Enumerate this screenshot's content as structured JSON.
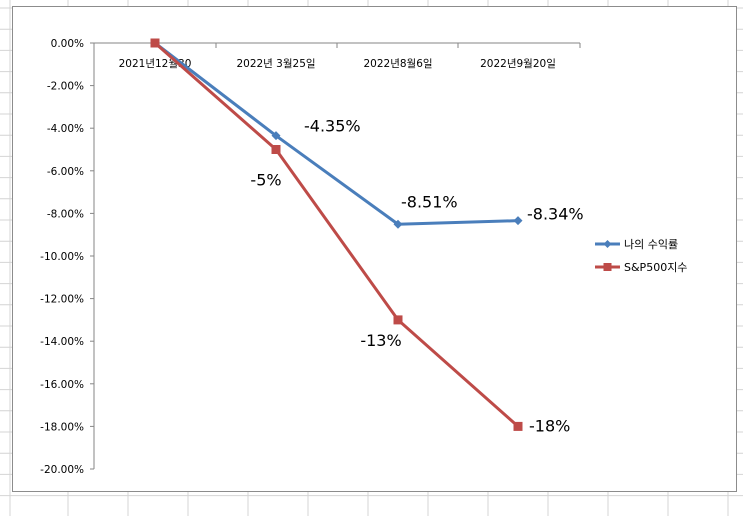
{
  "chart_data": {
    "type": "line",
    "categories": [
      "2021년12월30",
      "2022년 3월25일",
      "2022년8월6일",
      "2022년9월20일"
    ],
    "series": [
      {
        "name": "나의 수익률",
        "color": "#4a7ebb",
        "marker": "diamond",
        "values": [
          0,
          -4.35,
          -8.51,
          -8.34
        ],
        "data_labels": [
          "",
          "-4.35%",
          "-8.51%",
          "-8.34%"
        ]
      },
      {
        "name": "S&P500지수",
        "color": "#be4b48",
        "marker": "square",
        "values": [
          0,
          -5,
          -13,
          -18
        ],
        "data_labels": [
          "",
          "-5%",
          "-13%",
          "-18%"
        ]
      }
    ],
    "y_ticks": [
      "0.00%",
      "-2.00%",
      "-4.00%",
      "-6.00%",
      "-8.00%",
      "-10.00%",
      "-12.00%",
      "-14.00%",
      "-16.00%",
      "-18.00%",
      "-20.00%"
    ],
    "ylim": [
      -20,
      0
    ],
    "grid": false,
    "legend_position": "right"
  }
}
